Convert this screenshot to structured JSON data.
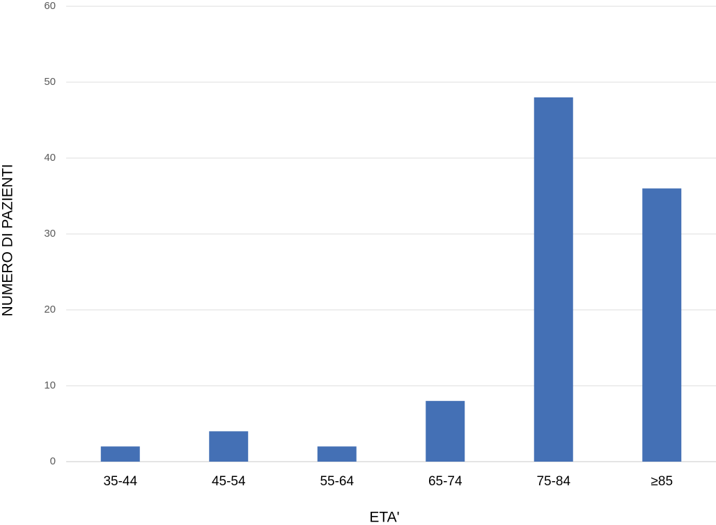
{
  "chart_data": {
    "type": "bar",
    "x_label": "ETA'",
    "y_label": "NUMERO DI PAZIENTI",
    "categories": [
      "35-44",
      "45-54",
      "55-64",
      "65-74",
      "75-84",
      "≥85"
    ],
    "values": [
      2,
      4,
      2,
      8,
      48,
      36
    ],
    "color": "#4470b5",
    "ylim": [
      0,
      60
    ],
    "yticks": [
      0,
      10,
      20,
      30,
      40,
      50,
      60
    ],
    "grid": true
  }
}
